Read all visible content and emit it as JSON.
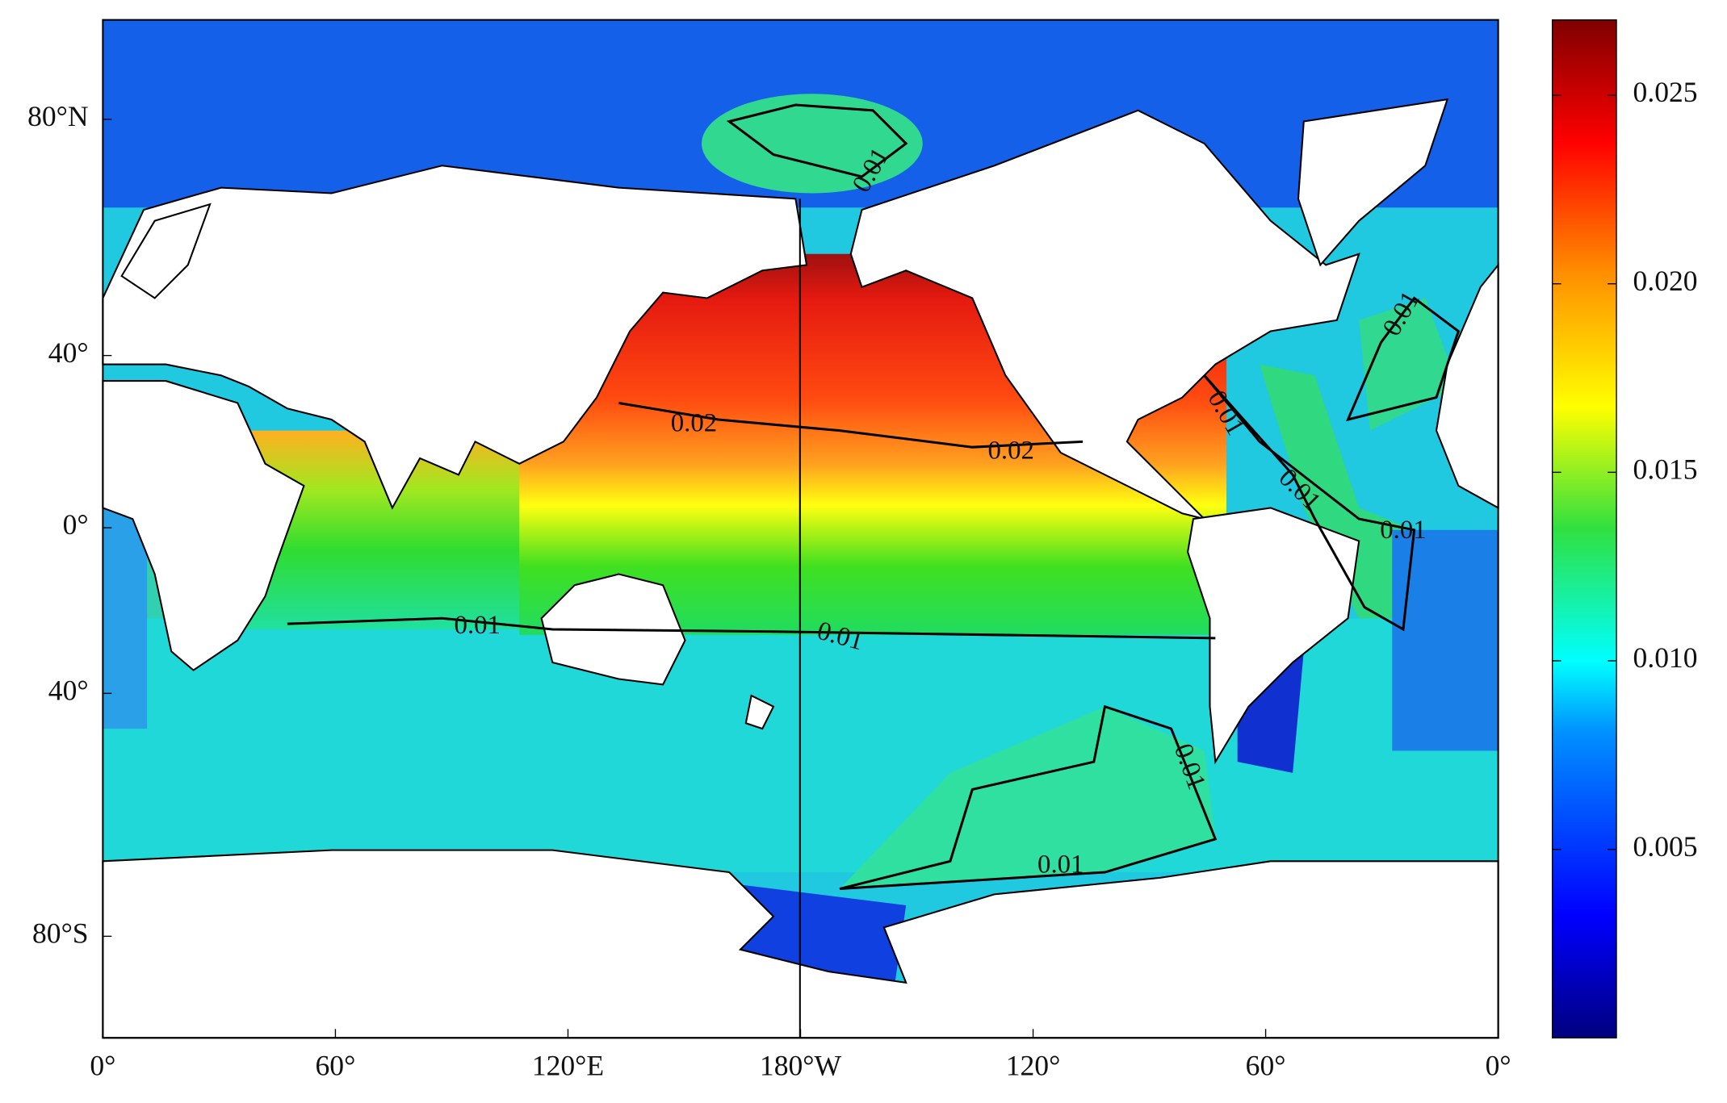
{
  "x_axis": {
    "ticks": [
      "0°",
      "60°",
      "120°E",
      "180°W",
      "120°",
      "60°",
      "0°"
    ]
  },
  "y_axis": {
    "ticks": [
      "80°N",
      "40°",
      "0°",
      "40°",
      "80°S"
    ]
  },
  "colorbar": {
    "range": [
      0,
      0.027
    ],
    "ticks": [
      0.005,
      {
        "value": 0.01,
        "label": "0.010"
      },
      0.015,
      {
        "value": 0.02,
        "label": "0.020"
      },
      0.025
    ]
  },
  "contour_labels": [
    "0.01",
    "0.02",
    "0.02",
    "0.01",
    "0.01",
    "0.01",
    "0.01",
    "0.01",
    "0.01",
    "0.01",
    "0.01"
  ]
}
